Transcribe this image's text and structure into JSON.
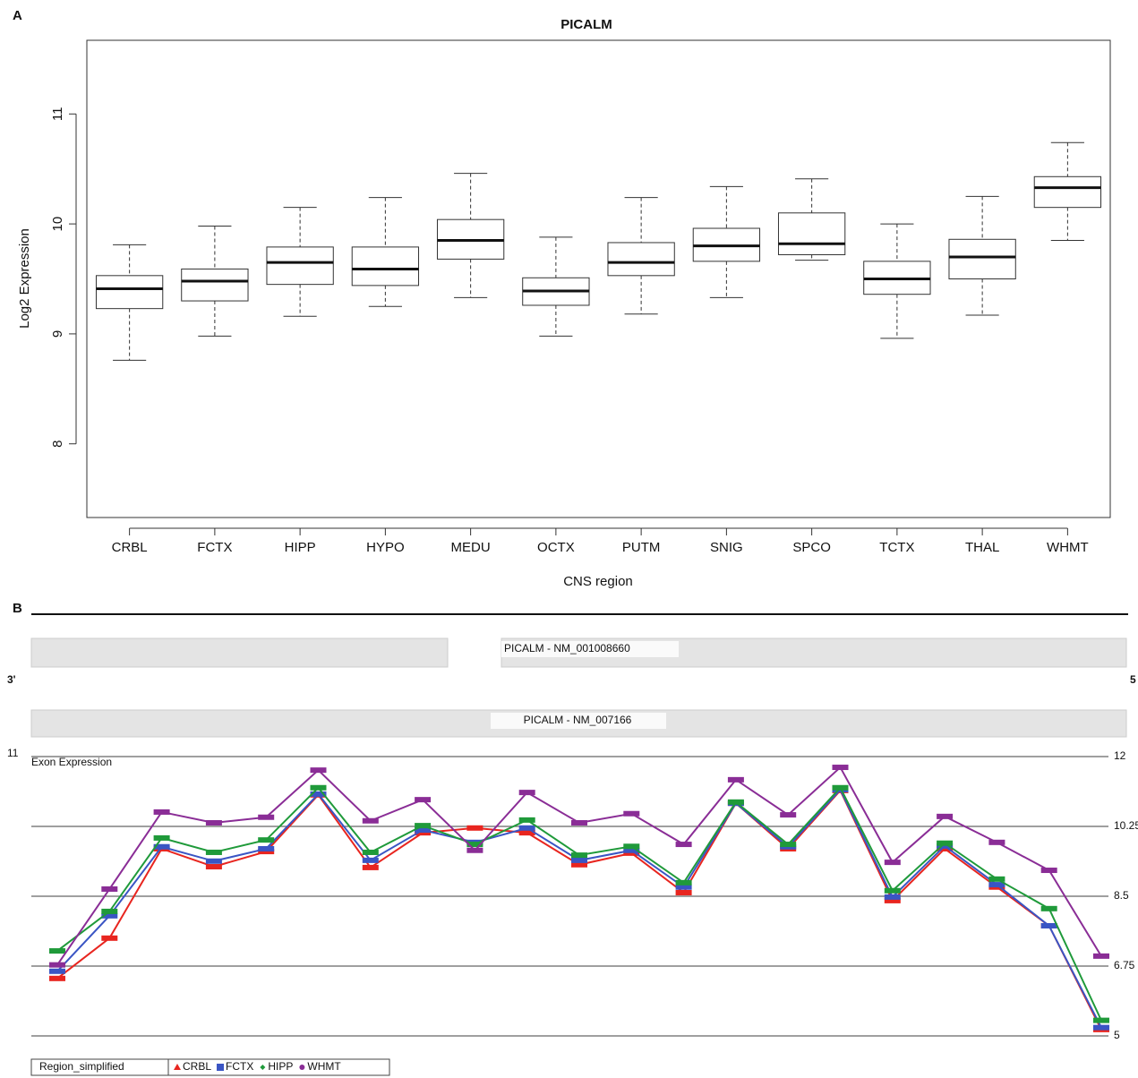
{
  "chart_data": [
    {
      "type": "box",
      "panel": "A",
      "title": "PICALM",
      "xlabel": "CNS region",
      "ylabel": "Log2 Expression",
      "categories": [
        "CRBL",
        "FCTX",
        "HIPP",
        "HYPO",
        "MEDU",
        "OCTX",
        "PUTM",
        "SNIG",
        "SPCO",
        "TCTX",
        "THAL",
        "WHMT"
      ],
      "boxes": [
        {
          "min": 8.76,
          "q1": 9.23,
          "median": 9.41,
          "q3": 9.53,
          "max": 9.81
        },
        {
          "min": 8.98,
          "q1": 9.3,
          "median": 9.48,
          "q3": 9.59,
          "max": 9.98
        },
        {
          "min": 9.16,
          "q1": 9.45,
          "median": 9.65,
          "q3": 9.79,
          "max": 10.15
        },
        {
          "min": 9.25,
          "q1": 9.44,
          "median": 9.59,
          "q3": 9.79,
          "max": 10.24
        },
        {
          "min": 9.33,
          "q1": 9.68,
          "median": 9.85,
          "q3": 10.04,
          "max": 10.46
        },
        {
          "min": 8.98,
          "q1": 9.26,
          "median": 9.39,
          "q3": 9.51,
          "max": 9.88
        },
        {
          "min": 9.18,
          "q1": 9.53,
          "median": 9.65,
          "q3": 9.83,
          "max": 10.24
        },
        {
          "min": 9.33,
          "q1": 9.66,
          "median": 9.8,
          "q3": 9.96,
          "max": 10.34
        },
        {
          "min": 9.67,
          "q1": 9.72,
          "median": 9.82,
          "q3": 10.1,
          "max": 10.41
        },
        {
          "min": 8.96,
          "q1": 9.36,
          "median": 9.5,
          "q3": 9.66,
          "max": 10.0
        },
        {
          "min": 9.17,
          "q1": 9.5,
          "median": 9.7,
          "q3": 9.86,
          "max": 10.25
        },
        {
          "min": 9.85,
          "q1": 10.15,
          "median": 10.33,
          "q3": 10.43,
          "max": 10.74
        }
      ],
      "ylim": [
        7.33,
        11.67
      ],
      "yticks": [
        8,
        9,
        10,
        11
      ]
    },
    {
      "type": "line",
      "panel": "B",
      "track_labels": [
        "PICALM - NM_001008660",
        "PICALM - NM_007166"
      ],
      "end_labels": [
        "3'",
        "5"
      ],
      "left_label": "11",
      "ylabel": "Exon Expression",
      "legend_title": "Region_simplified",
      "categories": [
        null,
        null,
        null,
        null,
        null,
        null,
        null,
        null,
        null,
        null,
        null,
        null,
        null,
        null,
        null,
        null,
        null,
        null,
        null,
        null,
        null
      ],
      "series": [
        {
          "name": "CRBL",
          "color": "#e8251f",
          "marker": "triangle",
          "values": [
            6.44,
            7.45,
            9.69,
            9.24,
            9.62,
            11.04,
            9.22,
            10.09,
            10.21,
            10.09,
            9.29,
            9.58,
            8.59,
            10.83,
            9.69,
            11.15,
            8.39,
            9.69,
            8.73,
            7.76,
            5.16
          ]
        },
        {
          "name": "FCTX",
          "color": "#3a55c4",
          "marker": "square",
          "values": [
            6.62,
            8.01,
            9.74,
            9.38,
            9.69,
            11.06,
            9.4,
            10.16,
            9.85,
            10.21,
            9.4,
            9.65,
            8.73,
            10.83,
            9.74,
            11.17,
            8.48,
            9.76,
            8.79,
            7.76,
            5.21
          ]
        },
        {
          "name": "HIPP",
          "color": "#1f9a3a",
          "marker": "diamond",
          "values": [
            7.13,
            8.12,
            9.96,
            9.6,
            9.91,
            11.22,
            9.6,
            10.27,
            9.8,
            10.41,
            9.53,
            9.75,
            8.84,
            10.86,
            9.8,
            11.22,
            8.64,
            9.83,
            8.93,
            8.19,
            5.39
          ]
        },
        {
          "name": "WHMT",
          "color": "#8a2d96",
          "marker": "circle",
          "values": [
            6.78,
            8.68,
            10.61,
            10.34,
            10.48,
            11.66,
            10.39,
            10.92,
            9.65,
            11.1,
            10.34,
            10.57,
            9.8,
            11.42,
            10.54,
            11.73,
            9.35,
            10.5,
            9.85,
            9.15,
            7.0
          ]
        }
      ],
      "ylim": [
        5,
        12
      ],
      "yticks": [
        5,
        6.75,
        8.5,
        10.25,
        12
      ],
      "grid": true
    }
  ]
}
